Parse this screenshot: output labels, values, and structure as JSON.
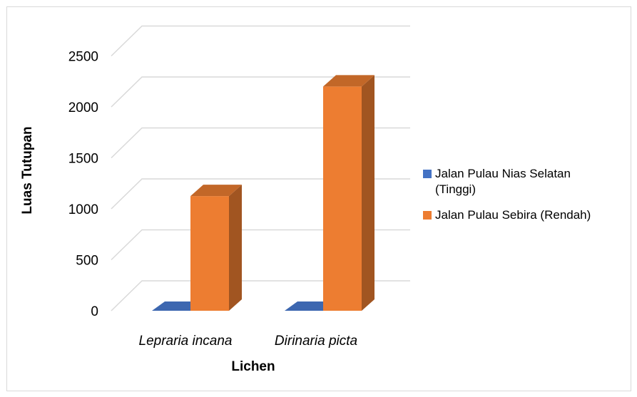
{
  "chart_data": {
    "type": "bar",
    "title": "",
    "xlabel": "Lichen",
    "ylabel": "Luas Tutupan",
    "categories": [
      "Lepraria incana",
      "Dirinaria picta"
    ],
    "yticks": [
      "0",
      "500",
      "1000",
      "1500",
      "2000",
      "2500"
    ],
    "ylim": [
      0,
      2500
    ],
    "grid": true,
    "legend_position": "right",
    "three_d": true,
    "series": [
      {
        "name": "Jalan Pulau Nias Selatan (Tinggi)",
        "values": [
          0,
          0
        ],
        "color": "#4472c4"
      },
      {
        "name": "Jalan Pulau Sebira (Rendah)",
        "values": [
          1125,
          2200
        ],
        "color": "#ed7d31"
      }
    ]
  }
}
